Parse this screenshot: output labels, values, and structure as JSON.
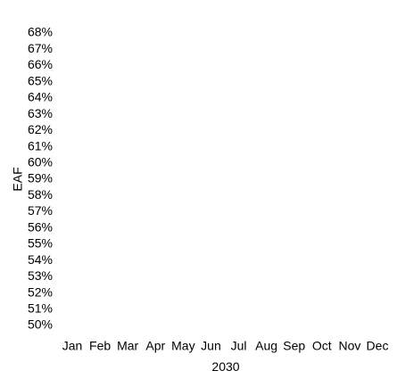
{
  "chart_data": {
    "type": "line",
    "title": "",
    "xlabel": "2030",
    "ylabel": "EAF",
    "categories": [
      "Jan",
      "Feb",
      "Mar",
      "Apr",
      "May",
      "Jun",
      "Jul",
      "Aug",
      "Sep",
      "Oct",
      "Nov",
      "Dec"
    ],
    "y_ticks": [
      "50%",
      "51%",
      "52%",
      "53%",
      "54%",
      "55%",
      "56%",
      "57%",
      "58%",
      "59%",
      "60%",
      "61%",
      "62%",
      "63%",
      "64%",
      "65%",
      "66%",
      "67%",
      "68%"
    ],
    "ylim": [
      50,
      68
    ],
    "series": [],
    "grid": false
  }
}
